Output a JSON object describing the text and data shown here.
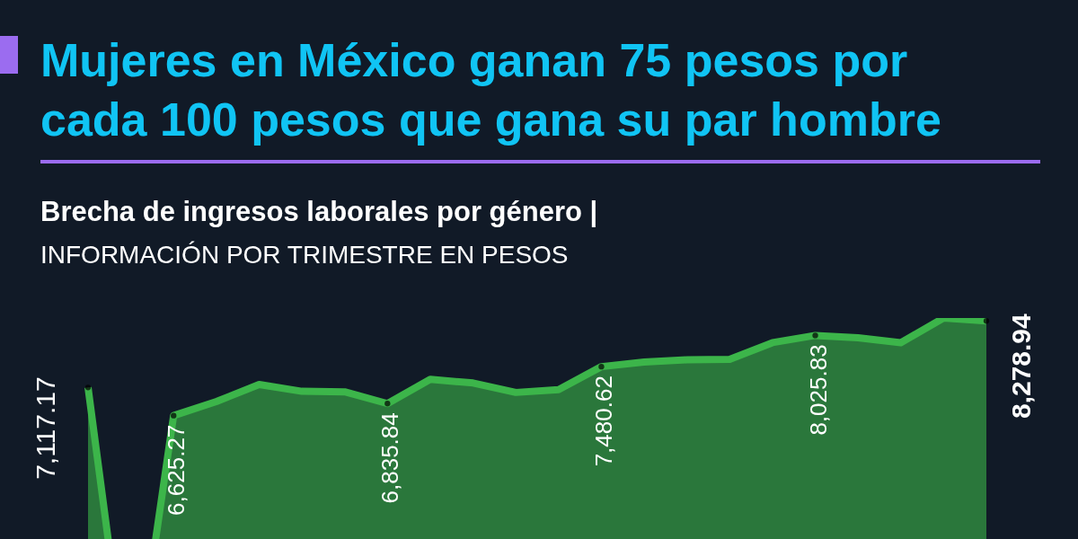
{
  "chart_data": {
    "type": "area",
    "title": "Mujeres en México ganan 75 pesos por cada 100 pesos que gana su par hombre",
    "subtitle": "Brecha de ingresos laborales por género |",
    "annotations": [
      "INFORMACIÓN POR TRIMESTRE EN PESOS"
    ],
    "categories": [
      null,
      null,
      null,
      null,
      null,
      null,
      null,
      null,
      null,
      null,
      null,
      null,
      null,
      null,
      null,
      null,
      null,
      null,
      null,
      null,
      null,
      null
    ],
    "series": [
      {
        "color": "#3cb54a",
        "values": [
          7117.17,
          1475,
          6625.27,
          6870,
          7170,
          7050,
          7040,
          6835.84,
          7260,
          7195,
          7030,
          7080,
          7480.62,
          7560,
          7600,
          7610,
          7900,
          8025.83,
          7985,
          7900,
          8330,
          8278.94
        ],
        "value_labels": [
          "7,117.17",
          null,
          "6,625.27",
          null,
          null,
          null,
          null,
          "6,835.84",
          null,
          null,
          null,
          null,
          "7,480.62",
          null,
          null,
          null,
          null,
          "8,025.83",
          null,
          null,
          null,
          "8,278.94"
        ]
      }
    ],
    "tick_labels": false
  }
}
